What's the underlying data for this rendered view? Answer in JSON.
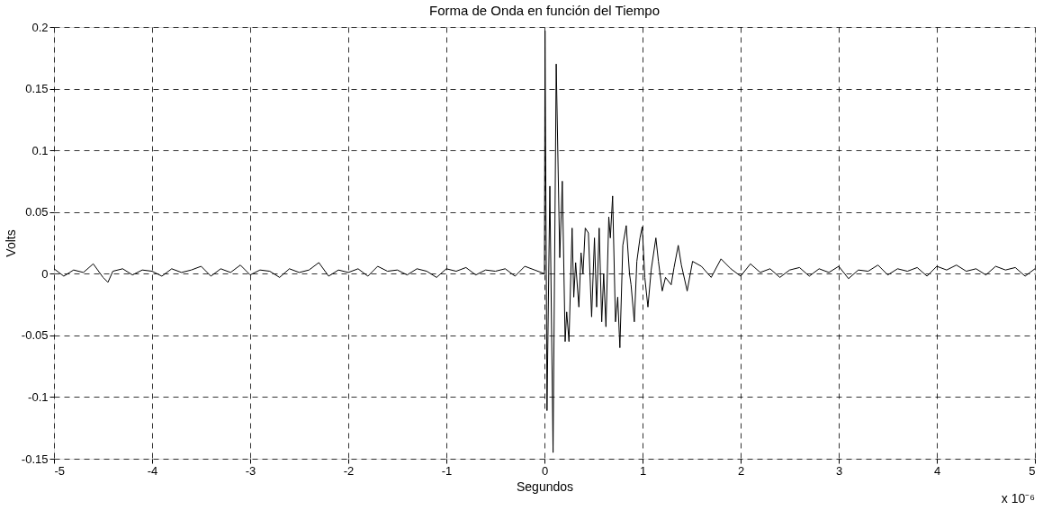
{
  "chart_data": {
    "type": "line",
    "title": "Forma de Onda en función del Tiempo",
    "xlabel": "Segundos",
    "ylabel": "Volts",
    "annotations": [
      "x 10⁻⁶"
    ],
    "x": [
      -5,
      -4.9,
      -4.8,
      -4.7,
      -4.6,
      -4.5,
      -4.45,
      -4.4,
      -4.3,
      -4.2,
      -4.1,
      -4,
      -3.9,
      -3.8,
      -3.7,
      -3.6,
      -3.5,
      -3.4,
      -3.3,
      -3.2,
      -3.1,
      -3,
      -2.9,
      -2.8,
      -2.7,
      -2.6,
      -2.5,
      -2.4,
      -2.3,
      -2.2,
      -2.1,
      -2,
      -1.9,
      -1.8,
      -1.7,
      -1.6,
      -1.5,
      -1.4,
      -1.3,
      -1.2,
      -1.1,
      -1,
      -0.9,
      -0.8,
      -0.7,
      -0.6,
      -0.5,
      -0.4,
      -0.3,
      -0.2,
      -0.1,
      0,
      0.006,
      0.026,
      0.055,
      0.088,
      0.12,
      0.156,
      0.182,
      0.211,
      0.227,
      0.25,
      0.282,
      0.299,
      0.318,
      0.351,
      0.373,
      0.393,
      0.416,
      0.448,
      0.481,
      0.51,
      0.532,
      0.558,
      0.584,
      0.604,
      0.627,
      0.656,
      0.672,
      0.695,
      0.724,
      0.747,
      0.769,
      0.799,
      0.834,
      0.867,
      0.883,
      0.916,
      0.942,
      0.974,
      0.997,
      1.023,
      1.055,
      1.088,
      1.136,
      1.162,
      1.201,
      1.234,
      1.292,
      1.321,
      1.364,
      1.396,
      1.455,
      1.51,
      1.6,
      1.7,
      1.8,
      1.9,
      2,
      2.1,
      2.2,
      2.3,
      2.4,
      2.5,
      2.6,
      2.7,
      2.8,
      2.9,
      3,
      3.1,
      3.2,
      3.3,
      3.4,
      3.5,
      3.6,
      3.7,
      3.8,
      3.9,
      4,
      4.1,
      4.2,
      4.3,
      4.4,
      4.5,
      4.6,
      4.7,
      4.8,
      4.9,
      5
    ],
    "values": [
      0.004,
      -0.002,
      0.003,
      0.001,
      0.008,
      -0.003,
      -0.007,
      0.002,
      0.004,
      -0.001,
      0.003,
      0.002,
      -0.002,
      0.004,
      0.001,
      0.003,
      0.006,
      -0.002,
      0.004,
      0.001,
      0.007,
      -0.001,
      0.003,
      0.002,
      -0.003,
      0.004,
      0.001,
      0.003,
      0.009,
      -0.002,
      0.003,
      0.001,
      0.004,
      -0.002,
      0.006,
      0.002,
      0.003,
      -0.001,
      0.004,
      0.002,
      -0.003,
      0.004,
      0.002,
      0.005,
      -0.001,
      0.003,
      0.002,
      0.004,
      -0.002,
      0.006,
      0.003,
      0,
      0.197,
      -0.111,
      0.071,
      -0.145,
      0.17,
      0.013,
      0.075,
      -0.055,
      -0.031,
      -0.055,
      0.037,
      -0.019,
      0.009,
      -0.027,
      0.017,
      0,
      0.037,
      0.033,
      -0.035,
      0.029,
      -0.027,
      0.037,
      -0.039,
      0,
      -0.043,
      0.046,
      0.029,
      0.063,
      -0.039,
      -0.019,
      -0.06,
      0.023,
      0.039,
      0,
      -0.009,
      -0.039,
      0.01,
      0.029,
      0.038,
      -0.003,
      -0.027,
      0.003,
      0.029,
      0.01,
      -0.014,
      -0.003,
      -0.009,
      0.005,
      0.023,
      0.007,
      -0.014,
      0.01,
      0.006,
      -0.003,
      0.012,
      0.004,
      -0.002,
      0.008,
      0.001,
      0.004,
      -0.003,
      0.003,
      0.005,
      -0.002,
      0.004,
      0.001,
      0.006,
      -0.004,
      0.003,
      0.002,
      0.007,
      -0.001,
      0.004,
      0.002,
      0.005,
      -0.002,
      0.006,
      0.003,
      0.007,
      0.002,
      0.004,
      -0.001,
      0.006,
      0.003,
      0.005,
      -0.002,
      0.004
    ],
    "color": "#000000",
    "xlim": [
      -5,
      5
    ],
    "xticks": [
      -5,
      -4,
      -3,
      -2,
      -1,
      0,
      1,
      2,
      3,
      4,
      5
    ],
    "ylim": [
      -0.15,
      0.2
    ],
    "yticks": [
      -0.15,
      -0.1,
      -0.05,
      0,
      0.05,
      0.1,
      0.15,
      0.2
    ],
    "grid": true,
    "line_style": "solid",
    "marker": "none"
  }
}
